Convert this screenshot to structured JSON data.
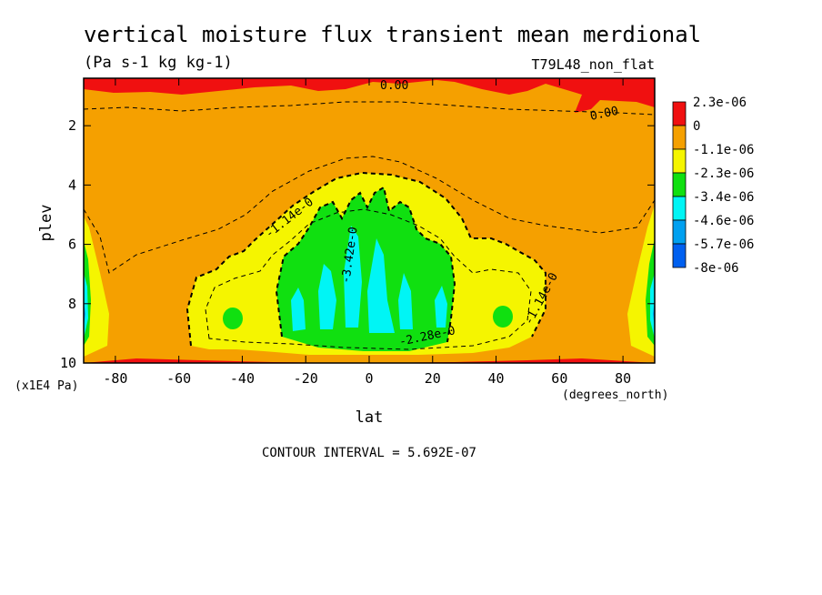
{
  "chart_data": {
    "type": "heatmap",
    "title": "vertical moisture flux transient mean merdional",
    "units": "(Pa s-1 kg kg-1)",
    "experiment": "T79L48_non_flat",
    "xlabel": "lat",
    "xunits": "(degrees_north)",
    "ylabel": "plev",
    "yunits": "(x1E4 Pa)",
    "xlim": [
      -90,
      90
    ],
    "ylim": [
      10,
      0.4
    ],
    "xticks": [
      "-80",
      "-60",
      "-40",
      "-20",
      "0",
      "20",
      "40",
      "60",
      "80"
    ],
    "yticks": [
      "2",
      "4",
      "6",
      "8",
      "10"
    ],
    "contour_interval_text": "CONTOUR INTERVAL = 5.692E-07",
    "contour_labels": [
      "0.00",
      "0.00",
      "-1.14e-0",
      "-3.42e-0",
      "-2.28e-0",
      "-1.14e-0"
    ],
    "colorbar": {
      "labels": [
        "2.3e-06",
        "0",
        "-1.1e-06",
        "-2.3e-06",
        "-3.4e-06",
        "-4.6e-06",
        "-5.7e-06",
        "-8e-06"
      ],
      "colors": [
        "#f01010",
        "#f5a000",
        "#f5f500",
        "#10e010",
        "#00f5f5",
        "#00a0f0",
        "#0060f0"
      ]
    }
  }
}
